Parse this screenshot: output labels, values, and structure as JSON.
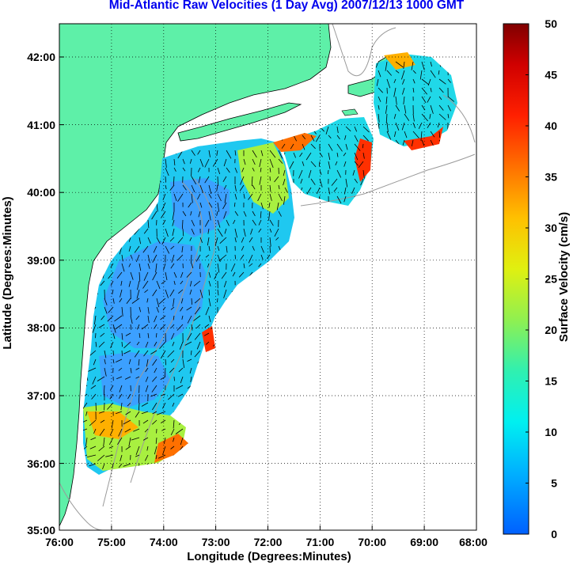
{
  "title": "Mid-Atlantic Raw Velocities (1 Day Avg) 2007/12/13 1000 GMT",
  "x_axis": {
    "label": "Longitude (Degrees:Minutes)",
    "ticks": [
      "76:00",
      "75:00",
      "74:00",
      "73:00",
      "72:00",
      "71:00",
      "70:00",
      "69:00",
      "68:00"
    ]
  },
  "y_axis": {
    "label": "Latitude (Degrees:Minutes)",
    "ticks": [
      "42:00",
      "41:00",
      "40:00",
      "39:00",
      "38:00",
      "37:00",
      "36:00",
      "35:00"
    ]
  },
  "colorbar": {
    "label": "Surface Velocity (cm/s)",
    "ticks": [
      "50",
      "45",
      "40",
      "35",
      "30",
      "25",
      "20",
      "15",
      "10",
      "5",
      "0"
    ],
    "range": [
      0,
      50
    ],
    "colors": [
      "#0060ff",
      "#00b4ff",
      "#00e8f0",
      "#20f0c0",
      "#60f080",
      "#b0f030",
      "#f0e800",
      "#ffb000",
      "#ff6000",
      "#ff1000",
      "#c00000",
      "#800000"
    ]
  },
  "map": {
    "land_color": "#5ef0a8",
    "grid": "dotted"
  }
}
